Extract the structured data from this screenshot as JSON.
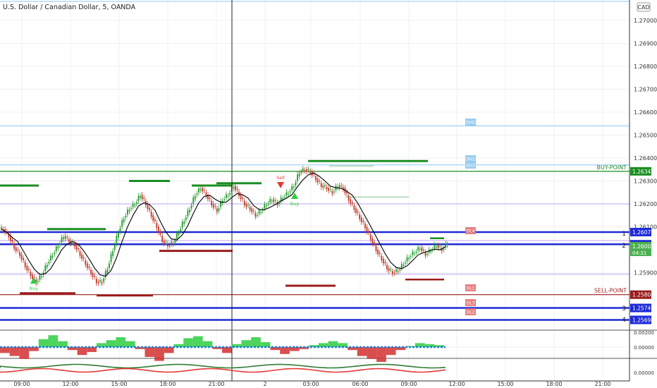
{
  "header": {
    "title": "U.S. Dollar / Canadian Dollar, 5, OANDA"
  },
  "currency_badge": "CAD",
  "colors": {
    "up_candle": "#1f9c2a",
    "down_candle": "#c0392b",
    "sma": "#000000",
    "blue_level": "#1f2bd6",
    "red_level": "#9b1c1c",
    "green_level": "#1b8e22",
    "axis_text": "#333333",
    "grid": "#f0f0f0",
    "sky_level": "#8ec7f0",
    "purple_level": "#b9a4f0"
  },
  "chart_data": {
    "type": "candlestick",
    "symbol": "USD/CAD",
    "timeframe": "5",
    "y_axis": {
      "ticks": [
        "1.27000",
        "1.26900",
        "1.26800",
        "1.26700",
        "1.26600",
        "1.26500",
        "1.26400",
        "1.26300",
        "1.26200",
        "1.26100",
        "1.25900"
      ],
      "ylim": [
        1.2555,
        1.2712
      ]
    },
    "x_axis": {
      "ticks": [
        "09:00",
        "12:00",
        "15:00",
        "18:00",
        "21:00",
        "2",
        "03:00",
        "06:00",
        "09:00",
        "12:00",
        "15:00",
        "18:00",
        "21:00"
      ]
    },
    "levels": [
      {
        "name": "BUY-POINT",
        "value": 1.26342,
        "label": "1.26342",
        "color": "#1b8e22"
      },
      {
        "name": "DH2",
        "value": 1.2654,
        "label": "",
        "color": "#8ec7f0"
      },
      {
        "name": "DH1",
        "value": 1.2637,
        "label": "",
        "color": "#8ec7f0"
      },
      {
        "name": "DL4",
        "value": 1.26077,
        "label": "1.26077",
        "color": "#1f2bd6"
      },
      {
        "name": "1",
        "value": 1.26024,
        "label": "1.26024",
        "color": "#1f2bd6"
      },
      {
        "name": "SELL-POINT",
        "value": 1.25804,
        "label": "1.25804",
        "color": "#9b1c1c"
      },
      {
        "name": "DL1",
        "value": 1.25746,
        "label": "1.25746",
        "color": "#1f2bd6"
      },
      {
        "name": "DL2",
        "value": 1.25694,
        "label": "1.25694",
        "color": "#1f2bd6"
      }
    ],
    "level_tags": [
      "DH2",
      "DH1",
      "DH3",
      "DL4",
      "DL1",
      "DL3",
      "DL2"
    ],
    "level_numbers": [
      "1",
      "2",
      "3",
      "4"
    ],
    "current_price": {
      "value": "1.26005",
      "countdown": "04:31"
    },
    "signals": [
      {
        "type": "Buy",
        "text": "Buy"
      },
      {
        "type": "Sell",
        "text": "Sell"
      },
      {
        "type": "Buy",
        "text": "Buy"
      }
    ],
    "price_path": [
      1.2609,
      1.2606,
      1.2601,
      1.2598,
      1.2593,
      1.2589,
      1.2586,
      1.2589,
      1.2594,
      1.2598,
      1.2602,
      1.2606,
      1.2604,
      1.2602,
      1.2598,
      1.2594,
      1.259,
      1.2586,
      1.2586,
      1.2592,
      1.26,
      1.2608,
      1.2614,
      1.2618,
      1.262,
      1.2624,
      1.262,
      1.2615,
      1.261,
      1.2604,
      1.2602,
      1.2603,
      1.2608,
      1.2613,
      1.2618,
      1.2624,
      1.2627,
      1.2624,
      1.262,
      1.2617,
      1.2622,
      1.2624,
      1.2628,
      1.2624,
      1.262,
      1.2618,
      1.2615,
      1.2617,
      1.262,
      1.2622,
      1.262,
      1.2623,
      1.2625,
      1.2628,
      1.2634,
      1.2635,
      1.2634,
      1.2631,
      1.2628,
      1.2627,
      1.2625,
      1.2628,
      1.2627,
      1.2622,
      1.2618,
      1.2614,
      1.261,
      1.2605,
      1.26,
      1.2596,
      1.2592,
      1.259,
      1.2591,
      1.2594,
      1.2597,
      1.2599,
      1.2601,
      1.2598,
      1.26,
      1.2602,
      1.26,
      1.2603
    ],
    "indicator1": {
      "ticks": [
        "0.00200",
        "0.00000"
      ]
    },
    "indicator2": {
      "ticks": [
        "0.00000"
      ]
    }
  }
}
